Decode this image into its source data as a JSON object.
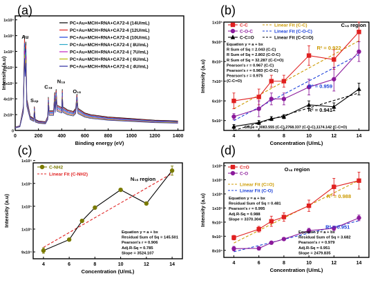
{
  "chart_data": [
    {
      "panel": "(a)",
      "type": "line",
      "xlabel": "Binding energy (eV)",
      "ylabel": "Intensity (a.u)",
      "xlim": [
        0,
        1450
      ],
      "ylim": [
        0,
        1450000
      ],
      "xticks": [
        0,
        200,
        400,
        600,
        800,
        1000,
        1200,
        1400
      ],
      "yticks": [
        0,
        200000,
        400000,
        600000,
        800000,
        1000000,
        1200000,
        1400000
      ],
      "ytick_labels": [
        "0",
        "2x10⁵",
        "4x10⁵",
        "6x10⁵",
        "8x10⁵",
        "1x10⁶",
        "1x10⁶",
        "1x10⁶"
      ],
      "annotations": [
        {
          "text": "Au",
          "x": 85,
          "y": 1160000
        },
        {
          "text": "S₂ₚ",
          "x": 165,
          "y": 360000
        },
        {
          "text": "C₁ₛ",
          "x": 285,
          "y": 530000
        },
        {
          "text": "N₁ₛ",
          "x": 395,
          "y": 600000
        },
        {
          "text": "O₁ₛ",
          "x": 530,
          "y": 470000
        }
      ],
      "series": [
        {
          "name": "PC+Au+MCH+RNA+CA72-4 (14U/mL)",
          "color": "#000000",
          "offset": 1.0
        },
        {
          "name": "PC+Au+MCH+RNA+CA72-4 (12U/mL)",
          "color": "#e02020",
          "offset": 0.96
        },
        {
          "name": "PC+Au+MCH+RNA+CA72-4 (10U/mL)",
          "color": "#1a3fd8",
          "offset": 0.92
        },
        {
          "name": "PC+Au+MCH+RNA+CA72-4 ( 8U/mL)",
          "color": "#2aa8c8",
          "offset": 0.88
        },
        {
          "name": "PC+Au+MCH+RNA+CA72-4 ( 7U/mL)",
          "color": "#c020c0",
          "offset": 0.84
        },
        {
          "name": "PC+Au+MCH+RNA+CA72-4 ( 6U/mL)",
          "color": "#b8b800",
          "offset": 0.8
        },
        {
          "name": "PC+Au+MCH+RNA+CA72-4 ( 4U/mL)",
          "color": "#2a2aa0",
          "offset": 0.76
        }
      ],
      "spectrum": [
        [
          0,
          40000
        ],
        [
          40,
          60000
        ],
        [
          70,
          300000
        ],
        [
          80,
          1200000
        ],
        [
          86,
          900000
        ],
        [
          92,
          1120000
        ],
        [
          100,
          400000
        ],
        [
          130,
          180000
        ],
        [
          160,
          150000
        ],
        [
          165,
          300000
        ],
        [
          172,
          140000
        ],
        [
          200,
          120000
        ],
        [
          260,
          110000
        ],
        [
          280,
          180000
        ],
        [
          285,
          420000
        ],
        [
          292,
          250000
        ],
        [
          330,
          250000
        ],
        [
          340,
          480000
        ],
        [
          345,
          300000
        ],
        [
          352,
          520000
        ],
        [
          360,
          320000
        ],
        [
          400,
          290000
        ],
        [
          405,
          520000
        ],
        [
          410,
          300000
        ],
        [
          450,
          260000
        ],
        [
          500,
          240000
        ],
        [
          520,
          280000
        ],
        [
          531,
          460000
        ],
        [
          540,
          280000
        ],
        [
          600,
          220000
        ],
        [
          650,
          200000
        ],
        [
          700,
          190000
        ],
        [
          750,
          180000
        ],
        [
          800,
          170000
        ],
        [
          900,
          160000
        ],
        [
          1000,
          150000
        ],
        [
          1100,
          140000
        ],
        [
          1200,
          130000
        ],
        [
          1300,
          125000
        ],
        [
          1400,
          120000
        ]
      ]
    },
    {
      "panel": "(b)",
      "type": "line",
      "region_label": "C₁ₛ region",
      "xlabel": "Concentration (U/mL)",
      "ylabel": "Intensity (a.u)",
      "xlim": [
        3.2,
        14.8
      ],
      "ylim": [
        450000,
        1000000
      ],
      "xticks": [
        4,
        6,
        8,
        10,
        12,
        14
      ],
      "yticks": [
        500000,
        600000,
        700000,
        800000,
        900000,
        1000000
      ],
      "ytick_labels": [
        "5x10⁴",
        "6x10⁴",
        "7x10⁴",
        "8x10⁴",
        "9x10⁴",
        "1x10⁵"
      ],
      "x": [
        4,
        6,
        7,
        8,
        10,
        12,
        14
      ],
      "series": [
        {
          "name": "C-C",
          "color": "#e02020",
          "marker": "square",
          "values": [
            600000,
            620000,
            700000,
            700000,
            830000,
            810000,
            950000
          ],
          "errors": [
            40000,
            40000,
            30000,
            30000,
            50000,
            50000,
            50000
          ]
        },
        {
          "name": "C-O-C",
          "color": "#8b1a9b",
          "marker": "circle",
          "values": [
            520000,
            560000,
            610000,
            610000,
            670000,
            710000,
            850000
          ],
          "errors": [
            15000,
            40000,
            30000,
            30000,
            40000,
            60000,
            50000
          ]
        },
        {
          "name": "C-C=O",
          "color": "#000000",
          "marker": "triangle",
          "values": [
            470000,
            490000,
            510000,
            520000,
            580000,
            570000,
            660000
          ],
          "errors": [
            10000,
            10000,
            10000,
            10000,
            20000,
            20000,
            30000
          ]
        }
      ],
      "fits": [
        {
          "name": "Linear Fit (C-C)",
          "color": "#cc9a00",
          "y_at_4": 560000,
          "y_at_14": 905000
        },
        {
          "name": "Linear Fit (C-O-C)",
          "color": "#1a3fd8",
          "y_at_4": 500000,
          "y_at_14": 835000
        },
        {
          "name": "Linear Fit (C-C=O)",
          "color": "#000000",
          "y_at_4": 450000,
          "y_at_14": 640000
        }
      ],
      "stats_lines": [
        "Equation y = a + bx",
        "R Sum of Sq = 2.043 (C-C)",
        "R Sum of Sq = 2.802 (C-O-C)",
        "R Sum of Sq = 32.287 (C-C=O)",
        "Pearson's r = 0.967 (C-C)",
        "Pearson's r = 0.983 (C-O-C)",
        "Pearson's r = 0.975",
        "(C-C=O)"
      ],
      "r2_labels": [
        {
          "text": "R² = 0.922",
          "color": "#cc9a00",
          "x": 11.6,
          "y": 860000
        },
        {
          "text": "R² = 0.959",
          "color": "#1a3fd8",
          "x": 10.9,
          "y": 665000
        },
        {
          "text": "R² = 0.941",
          "color": "#000000",
          "x": 10.9,
          "y": 545000
        }
      ],
      "slope_text": "Slope = 3083.555 (C-C),2768.337 (C-O-C),1174.142 (C-C=O)"
    },
    {
      "panel": "(c)",
      "type": "line",
      "region_label": "N₁ₛ region",
      "xlabel": "Concentration (U/mL)",
      "ylabel": "Intensity (a.u)",
      "xlim": [
        3.2,
        14.8
      ],
      "ylim": [
        885000,
        1095000
      ],
      "xticks": [
        4,
        6,
        8,
        10,
        12,
        14
      ],
      "yticks": [
        900000,
        950000,
        1000000,
        1050000,
        1100000
      ],
      "ytick_labels": [
        "9x10⁴",
        "1x10⁵",
        "1x10⁵",
        "1x10⁵",
        "1x10⁵"
      ],
      "x": [
        4,
        6,
        7,
        8,
        10,
        12,
        14
      ],
      "series": [
        {
          "name": "C-NH2",
          "color": "#7a7a00",
          "marker": "circle",
          "values": [
            903000,
            927000,
            968000,
            997000,
            1036000,
            1006000,
            1078000
          ],
          "errors": [
            6000,
            3000,
            3000,
            3000,
            2000,
            2000,
            10000
          ]
        }
      ],
      "fits": [
        {
          "name": "Linear Fit (C-NH2)",
          "color": "#e02020",
          "y_at_4": 910000,
          "y_at_14": 1072000
        }
      ],
      "stats_lines": [
        "Equation y = a + bx",
        "Residual Sum of Sq = 145.501",
        "Pearson's r = 0.906",
        "Adj.R-Sq = 0.785",
        "Slope = 3524.107"
      ]
    },
    {
      "panel": "(d)",
      "type": "line",
      "region_label": "O₁ₛ region",
      "xlabel": "Concentration (U/mL)",
      "ylabel": "Intensity (a.u)",
      "xlim": [
        3.2,
        14.8
      ],
      "ylim": [
        775000,
        1110000
      ],
      "xticks": [
        4,
        6,
        8,
        10,
        12,
        14
      ],
      "yticks": [
        800000,
        850000,
        900000,
        950000,
        1000000,
        1050000,
        1100000
      ],
      "ytick_labels": [
        "8x10⁴",
        "9x10⁴",
        "9x10⁴",
        "1x10⁵",
        "1x10⁵",
        "1x10⁵",
        "1x10⁵"
      ],
      "x": [
        4,
        6,
        7,
        8,
        10,
        12,
        14
      ],
      "series": [
        {
          "name": "C=O",
          "color": "#e02020",
          "marker": "square",
          "values": [
            845000,
            875000,
            903000,
            918000,
            958000,
            1025000,
            1047000
          ],
          "errors": [
            8000,
            10000,
            18000,
            15000,
            20000,
            30000,
            30000
          ]
        },
        {
          "name": "C-O",
          "color": "#8b1a9b",
          "marker": "circle",
          "values": [
            806000,
            807000,
            827000,
            840000,
            870000,
            878000,
            915000
          ],
          "errors": [
            8000,
            6000,
            5000,
            5000,
            8000,
            8000,
            10000
          ]
        }
      ],
      "fits": [
        {
          "name": "Linear Fit (C=O)",
          "color": "#cc9a00",
          "y_at_4": 826000,
          "y_at_14": 1048000
        },
        {
          "name": "Linear Fit (C-O)",
          "color": "#1a3fd8",
          "y_at_4": 795000,
          "y_at_14": 905000
        }
      ],
      "stats_upper": [
        "Equation y = a + bx",
        "Residual Sum of Sq = 0.481",
        "Pearson's r = 0.995",
        "Adj.R-Sq = 0.988",
        "Slope = 3370.304"
      ],
      "stats_lower": [
        "Equation y = a + bx",
        "Residual Sum of Sq = 3.682",
        "Pearson's r = 0.979",
        "Adj.R-Sq = 0.951",
        "Slope = 2479.835"
      ],
      "r2_labels": [
        {
          "text": "R² = 0.988",
          "color": "#cc9a00",
          "x": 12.4,
          "y": 985000
        },
        {
          "text": "R² = 0.951",
          "color": "#1a3fd8",
          "x": 12.3,
          "y": 877000
        }
      ]
    }
  ]
}
